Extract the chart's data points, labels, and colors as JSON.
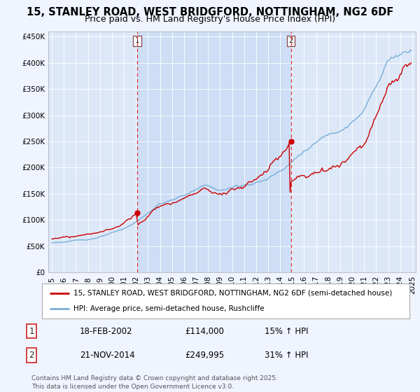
{
  "title": "15, STANLEY ROAD, WEST BRIDGFORD, NOTTINGHAM, NG2 6DF",
  "subtitle": "Price paid vs. HM Land Registry's House Price Index (HPI)",
  "background_color": "#f0f4ff",
  "plot_bg_color": "#dce8f8",
  "highlight_bg_color": "#ccddf5",
  "line1_color": "#cc0000",
  "line2_color": "#7aaed6",
  "vline_color": "#dd3333",
  "ylim": [
    0,
    460000
  ],
  "yticks": [
    0,
    50000,
    100000,
    150000,
    200000,
    250000,
    300000,
    350000,
    400000,
    450000
  ],
  "ytick_labels": [
    "£0",
    "£50K",
    "£100K",
    "£150K",
    "£200K",
    "£250K",
    "£300K",
    "£350K",
    "£400K",
    "£450K"
  ],
  "xstart_year": 1995,
  "xend_year": 2025,
  "vline1_year": 2002.12,
  "vline2_year": 2014.9,
  "marker1_year": 2002.12,
  "marker1_value": 114000,
  "marker2_year": 2014.9,
  "marker2_value": 249995,
  "legend_line1": "15, STANLEY ROAD, WEST BRIDGFORD, NOTTINGHAM, NG2 6DF (semi-detached house)",
  "legend_line2": "HPI: Average price, semi-detached house, Rushcliffe",
  "table_row1": [
    "1",
    "18-FEB-2002",
    "£114,000",
    "15% ↑ HPI"
  ],
  "table_row2": [
    "2",
    "21-NOV-2014",
    "£249,995",
    "31% ↑ HPI"
  ],
  "footer": "Contains HM Land Registry data © Crown copyright and database right 2025.\nThis data is licensed under the Open Government Licence v3.0.",
  "title_fontsize": 10.5,
  "subtitle_fontsize": 9,
  "tick_fontsize": 7.5,
  "legend_fontsize": 7.5,
  "table_fontsize": 8.5,
  "footer_fontsize": 6.5
}
